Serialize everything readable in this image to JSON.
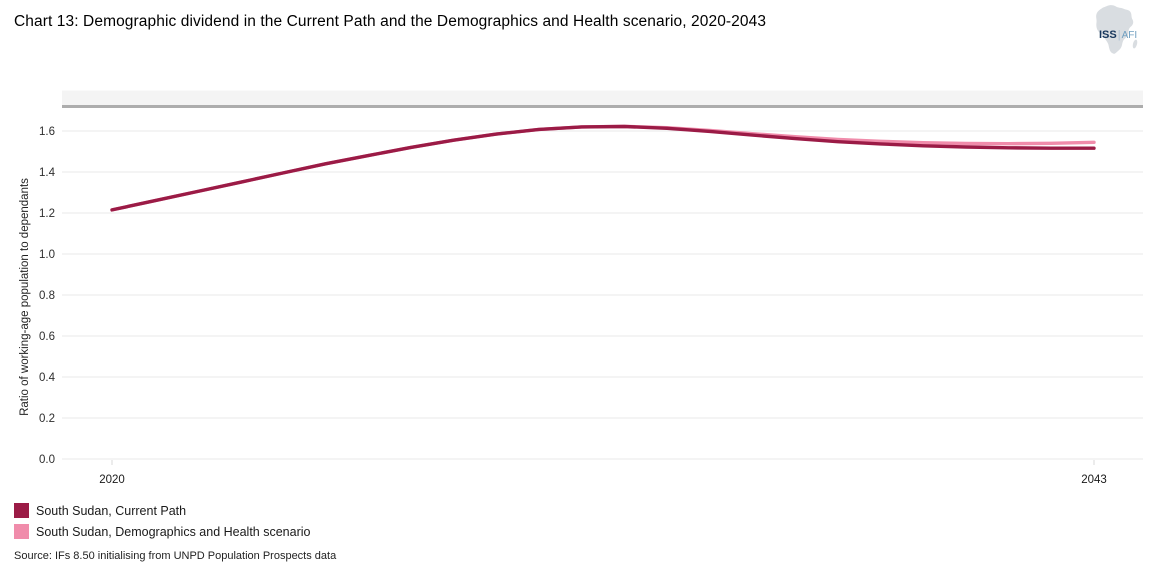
{
  "header": {
    "title": "Chart 13: Demographic dividend in the Current Path and the Demographics and Health scenario, 2020-2043",
    "logo": {
      "primary": "ISS",
      "separator": "|",
      "secondary": "AFI"
    }
  },
  "chart_data": {
    "type": "line",
    "title": "Chart 13: Demographic dividend in the Current Path and the Demographics and Health scenario, 2020-2043",
    "xlabel": "",
    "ylabel": "Ratio of working-age population to dependants",
    "grid": true,
    "legend_position": "bottom-left",
    "xlim": [
      2020,
      2043
    ],
    "ylim": [
      0.0,
      1.7
    ],
    "y_ticks": [
      "0.0",
      "0.2",
      "0.4",
      "0.6",
      "0.8",
      "1.0",
      "1.2",
      "1.4",
      "1.6"
    ],
    "x_ticks": [
      {
        "label": "2020",
        "year": 2020
      },
      {
        "label": "2043",
        "year": 2043
      }
    ],
    "x": [
      2020,
      2021,
      2022,
      2023,
      2024,
      2025,
      2026,
      2027,
      2028,
      2029,
      2030,
      2031,
      2032,
      2033,
      2034,
      2035,
      2036,
      2037,
      2038,
      2039,
      2040,
      2041,
      2042,
      2043
    ],
    "series": [
      {
        "name": "South Sudan, Current Path",
        "color": "#9b1b46",
        "values": [
          1.215,
          1.26,
          1.305,
          1.35,
          1.395,
          1.44,
          1.48,
          1.52,
          1.555,
          1.585,
          1.608,
          1.62,
          1.622,
          1.613,
          1.598,
          1.58,
          1.563,
          1.548,
          1.537,
          1.528,
          1.522,
          1.518,
          1.516,
          1.516
        ]
      },
      {
        "name": "South Sudan, Demographics and Health scenario",
        "color": "#f08cab",
        "values": [
          1.215,
          1.26,
          1.305,
          1.35,
          1.395,
          1.44,
          1.48,
          1.52,
          1.555,
          1.585,
          1.608,
          1.62,
          1.623,
          1.616,
          1.603,
          1.587,
          1.572,
          1.559,
          1.55,
          1.543,
          1.539,
          1.538,
          1.54,
          1.545
        ]
      }
    ],
    "source": "Source: IFs 8.50 initialising from UNPD Population Prospects data"
  }
}
